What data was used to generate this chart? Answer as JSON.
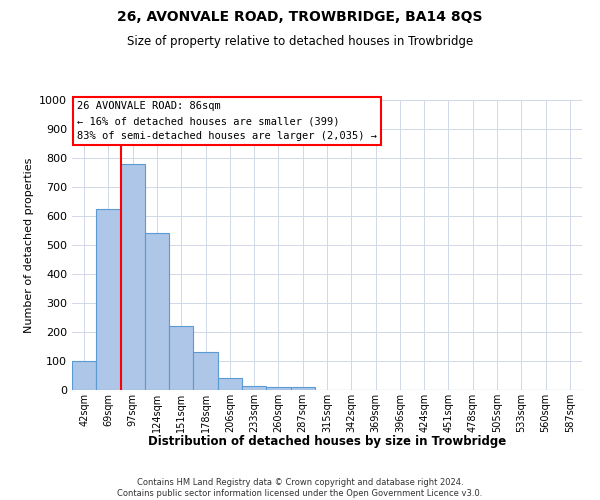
{
  "title": "26, AVONVALE ROAD, TROWBRIDGE, BA14 8QS",
  "subtitle": "Size of property relative to detached houses in Trowbridge",
  "xlabel": "Distribution of detached houses by size in Trowbridge",
  "ylabel": "Number of detached properties",
  "bar_color": "#aec6e8",
  "bar_edge_color": "#5b9bd5",
  "categories": [
    "42sqm",
    "69sqm",
    "97sqm",
    "124sqm",
    "151sqm",
    "178sqm",
    "206sqm",
    "233sqm",
    "260sqm",
    "287sqm",
    "315sqm",
    "342sqm",
    "369sqm",
    "396sqm",
    "424sqm",
    "451sqm",
    "478sqm",
    "505sqm",
    "533sqm",
    "560sqm",
    "587sqm"
  ],
  "values": [
    100,
    625,
    780,
    540,
    220,
    130,
    40,
    15,
    10,
    10,
    0,
    0,
    0,
    0,
    0,
    0,
    0,
    0,
    0,
    0,
    0
  ],
  "ylim": [
    0,
    1000
  ],
  "yticks": [
    0,
    100,
    200,
    300,
    400,
    500,
    600,
    700,
    800,
    900,
    1000
  ],
  "property_line_x": 1.5,
  "annotation_text": "26 AVONVALE ROAD: 86sqm\n← 16% of detached houses are smaller (399)\n83% of semi-detached houses are larger (2,035) →",
  "footer_line1": "Contains HM Land Registry data © Crown copyright and database right 2024.",
  "footer_line2": "Contains public sector information licensed under the Open Government Licence v3.0.",
  "background_color": "#ffffff",
  "grid_color": "#d0d8e8"
}
